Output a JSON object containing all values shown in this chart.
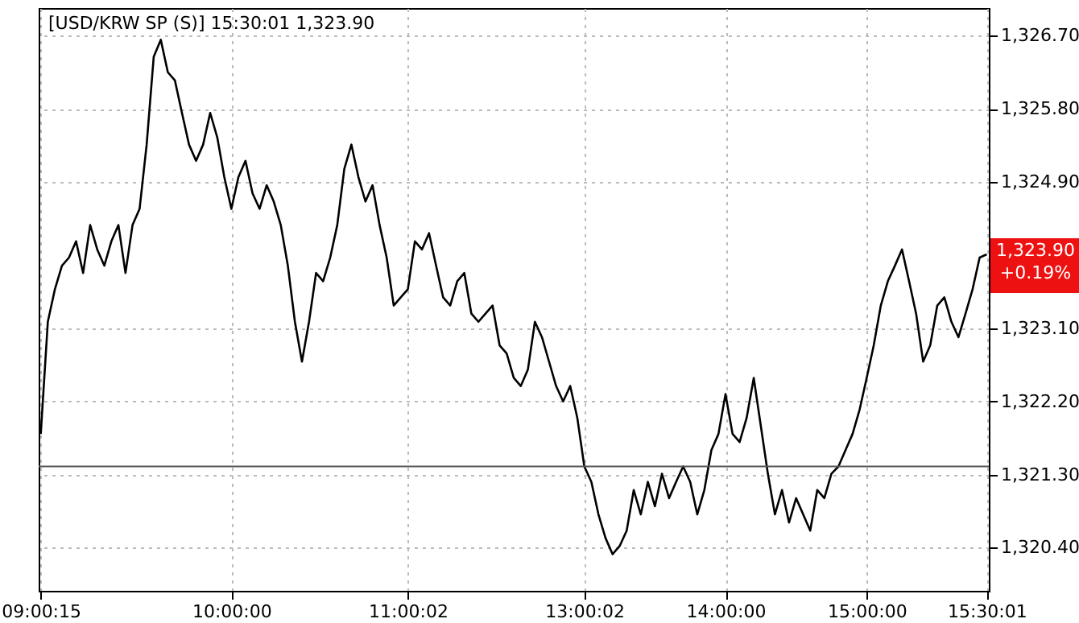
{
  "chart_data": {
    "type": "line",
    "title": "[USD/KRW SP (S)] 15:30:01   1,323.90",
    "categories": [
      "09:00:15",
      null,
      null,
      null,
      null,
      null,
      null,
      null,
      null,
      null,
      null,
      null,
      null,
      null,
      null,
      null,
      null,
      null,
      null,
      null,
      null,
      null,
      null,
      null,
      null,
      null,
      null,
      "10:00:00",
      null,
      null,
      null,
      null,
      null,
      null,
      null,
      null,
      null,
      null,
      null,
      null,
      null,
      null,
      null,
      null,
      null,
      null,
      null,
      null,
      null,
      null,
      null,
      null,
      "11:00:02",
      null,
      null,
      null,
      null,
      null,
      null,
      null,
      null,
      null,
      null,
      null,
      null,
      null,
      null,
      null,
      null,
      null,
      null,
      null,
      null,
      null,
      null,
      null,
      null,
      "13:00:02",
      null,
      null,
      null,
      null,
      null,
      null,
      null,
      null,
      null,
      null,
      null,
      null,
      null,
      null,
      null,
      null,
      null,
      null,
      null,
      "14:00:00",
      null,
      null,
      null,
      null,
      null,
      null,
      null,
      null,
      null,
      null,
      null,
      null,
      null,
      null,
      null,
      null,
      null,
      null,
      null,
      "15:00:00",
      null,
      null,
      null,
      null,
      null,
      null,
      null,
      null,
      null,
      null,
      null,
      null,
      null,
      null,
      null,
      null,
      "15:30:01"
    ],
    "series": [
      {
        "color": "#000000",
        "values": [
          1321.8,
          1323.18,
          1323.58,
          1323.87,
          1323.97,
          1324.17,
          1323.78,
          1324.37,
          1324.07,
          1323.87,
          1324.17,
          1324.37,
          1323.78,
          1324.37,
          1324.57,
          1325.36,
          1326.44,
          1326.65,
          1326.25,
          1326.15,
          1325.75,
          1325.36,
          1325.16,
          1325.36,
          1325.75,
          1325.45,
          1324.96,
          1324.57,
          1324.96,
          1325.16,
          1324.76,
          1324.57,
          1324.86,
          1324.66,
          1324.37,
          1323.87,
          1323.18,
          1322.69,
          1323.18,
          1323.78,
          1323.68,
          1323.97,
          1324.37,
          1325.06,
          1325.36,
          1324.96,
          1324.66,
          1324.86,
          1324.37,
          1323.97,
          1323.38,
          1323.48,
          1323.58,
          1324.17,
          1324.07,
          1324.27,
          1323.87,
          1323.48,
          1323.38,
          1323.68,
          1323.78,
          1323.28,
          1323.18,
          1323.28,
          1323.38,
          1322.89,
          1322.79,
          1322.49,
          1322.39,
          1322.59,
          1323.18,
          1322.99,
          1322.69,
          1322.39,
          1322.2,
          1322.39,
          1322.0,
          1321.4,
          1321.21,
          1320.81,
          1320.52,
          1320.32,
          1320.42,
          1320.61,
          1321.11,
          1320.81,
          1321.21,
          1320.91,
          1321.31,
          1321.01,
          1321.21,
          1321.4,
          1321.21,
          1320.81,
          1321.11,
          1321.6,
          1321.8,
          1322.29,
          1321.8,
          1321.7,
          1322.0,
          1322.49,
          1321.9,
          1321.31,
          1320.81,
          1321.11,
          1320.71,
          1321.01,
          1320.81,
          1320.61,
          1321.11,
          1321.01,
          1321.31,
          1321.4,
          1321.6,
          1321.8,
          1322.1,
          1322.49,
          1322.89,
          1323.38,
          1323.68,
          1323.87,
          1324.07,
          1323.68,
          1323.28,
          1322.69,
          1322.89,
          1323.38,
          1323.48,
          1323.18,
          1322.99,
          1323.28,
          1323.58,
          1323.97,
          1324.01
        ]
      }
    ],
    "ylim": [
      1319.87,
      1327.04
    ],
    "yticks": [
      {
        "value": 1320.4,
        "label": "1,320.40"
      },
      {
        "value": 1321.3,
        "label": "1,321.30"
      },
      {
        "value": 1322.2,
        "label": "1,322.20"
      },
      {
        "value": 1323.1,
        "label": "1,323.10"
      },
      {
        "value": 1324.9,
        "label": "1,324.90"
      },
      {
        "value": 1325.8,
        "label": "1,325.80"
      },
      {
        "value": 1326.7,
        "label": "1,326.70"
      }
    ],
    "ref_lines": [
      {
        "axis": "y",
        "value": 1321.4,
        "color": "#555555"
      }
    ],
    "annotations": [
      "1,323.90",
      "+0.19%"
    ],
    "grid": true,
    "marker": "none",
    "line_style": "solid"
  }
}
